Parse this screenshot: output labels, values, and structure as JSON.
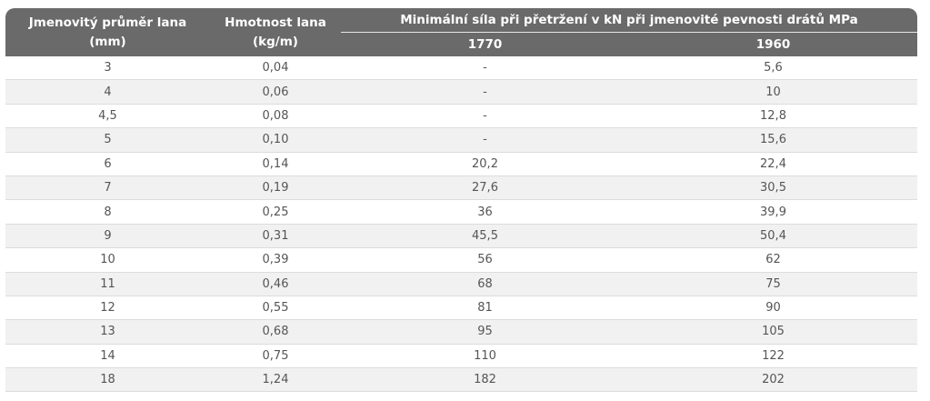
{
  "table": {
    "headers": {
      "diameter": "Jmenovitý průměr lana\n(mm)",
      "diameter_line1": "Jmenovitý průměr lana",
      "diameter_line2": "(mm)",
      "weight_line1": "Hmotnost lana",
      "weight_line2": "(kg/m)",
      "force_group": "Minimální síla při přetržení v kN při jmenovité pevnosti drátů MPa",
      "strength_1770": "1770",
      "strength_1960": "1960"
    },
    "rows": [
      [
        "3",
        "0,04",
        "-",
        "5,6"
      ],
      [
        "4",
        "0,06",
        "-",
        "10"
      ],
      [
        "4,5",
        "0,08",
        "-",
        "12,8"
      ],
      [
        "5",
        "0,10",
        "-",
        "15,6"
      ],
      [
        "6",
        "0,14",
        "20,2",
        "22,4"
      ],
      [
        "7",
        "0,19",
        "27,6",
        "30,5"
      ],
      [
        "8",
        "0,25",
        "36",
        "39,9"
      ],
      [
        "9",
        "0,31",
        "45,5",
        "50,4"
      ],
      [
        "10",
        "0,39",
        "56",
        "62"
      ],
      [
        "11",
        "0,46",
        "68",
        "75"
      ],
      [
        "12",
        "0,55",
        "81",
        "90"
      ],
      [
        "13",
        "0,68",
        "95",
        "105"
      ],
      [
        "14",
        "0,75",
        "110",
        "122"
      ],
      [
        "18",
        "1,24",
        "182",
        "202"
      ]
    ],
    "colors": {
      "header_bg": "#6a6a6a",
      "header_text": "#ffffff",
      "stripe": "#f1f1f1",
      "cell_text": "#555555"
    }
  }
}
